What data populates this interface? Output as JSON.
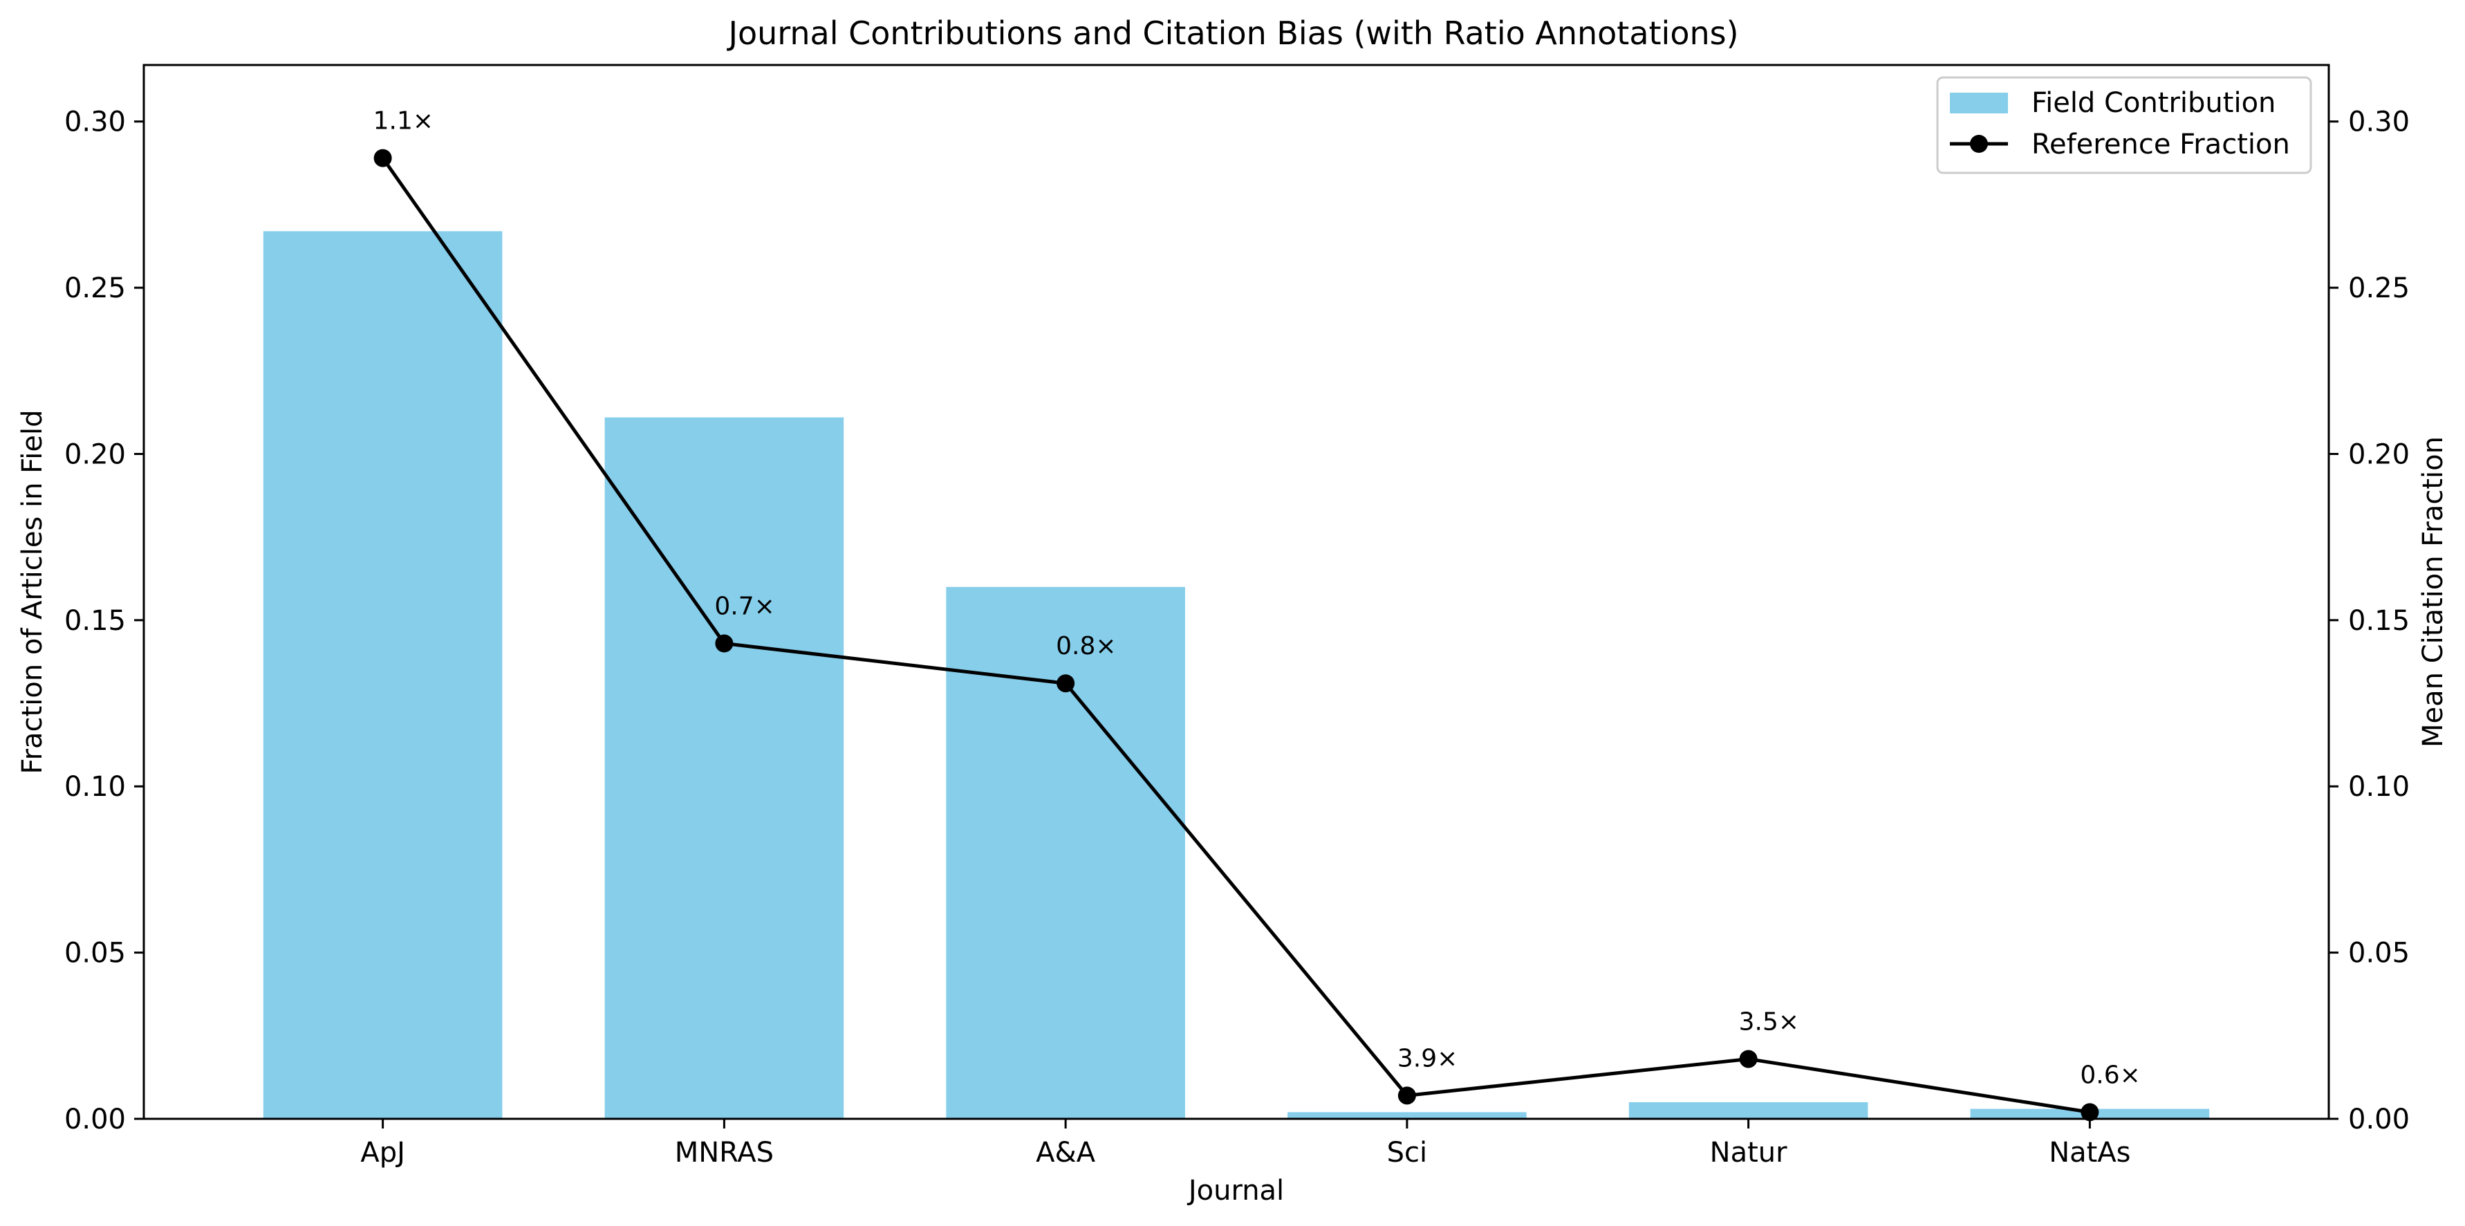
{
  "chart_data": {
    "type": "bar",
    "title": "Journal Contributions and Citation Bias (with Ratio Annotations)",
    "xlabel": "Journal",
    "ylabel": "Fraction of Articles in Field",
    "ylabel_right": "Mean Citation Fraction",
    "categories": [
      "ApJ",
      "MNRAS",
      "A&A",
      "Sci",
      "Natur",
      "NatAs"
    ],
    "ylim": [
      0,
      0.317
    ],
    "yticks": [
      "0.00",
      "0.05",
      "0.10",
      "0.15",
      "0.20",
      "0.25",
      "0.30"
    ],
    "series": [
      {
        "name": "Field Contribution",
        "type": "bar",
        "color": "#87ceeb",
        "values": [
          0.267,
          0.211,
          0.16,
          0.002,
          0.005,
          0.003
        ]
      },
      {
        "name": "Reference Fraction",
        "type": "line",
        "color": "#000000",
        "marker": "circle",
        "values": [
          0.289,
          0.143,
          0.131,
          0.007,
          0.018,
          0.002
        ]
      }
    ],
    "annotations": [
      "1.1×",
      "0.7×",
      "0.8×",
      "3.9×",
      "3.5×",
      "0.6×"
    ],
    "legend": {
      "placement": "top-right",
      "entries": [
        "Field Contribution",
        "Reference Fraction"
      ]
    },
    "grid": false
  }
}
